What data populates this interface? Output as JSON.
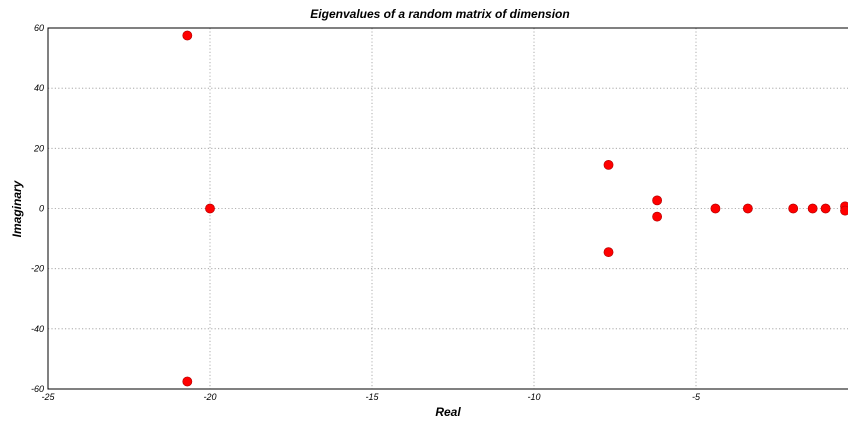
{
  "chart_data": {
    "type": "scatter",
    "title": "Eigenvalues of a random matrix of dimension",
    "xlabel": "Real",
    "ylabel": "Imaginary",
    "xlim": [
      -25,
      0
    ],
    "ylim": [
      -60,
      60
    ],
    "x_ticks": [
      -25,
      -20,
      -15,
      -10,
      -5
    ],
    "y_ticks": [
      -60,
      -40,
      -20,
      0,
      20,
      40,
      60
    ],
    "grid": true,
    "marker_color": "#ff0000",
    "points": [
      {
        "x": -20.7,
        "y": 57.5
      },
      {
        "x": -20.7,
        "y": -57.5
      },
      {
        "x": -20.0,
        "y": 0.0
      },
      {
        "x": -7.7,
        "y": 14.5
      },
      {
        "x": -7.7,
        "y": -14.5
      },
      {
        "x": -6.2,
        "y": 2.7
      },
      {
        "x": -6.2,
        "y": -2.7
      },
      {
        "x": -4.4,
        "y": 0.0
      },
      {
        "x": -3.4,
        "y": 0.0
      },
      {
        "x": -2.0,
        "y": 0.0
      },
      {
        "x": -1.4,
        "y": 0.0
      },
      {
        "x": -1.0,
        "y": 0.0
      },
      {
        "x": -0.4,
        "y": 0.7
      },
      {
        "x": -0.4,
        "y": -0.7
      }
    ]
  }
}
